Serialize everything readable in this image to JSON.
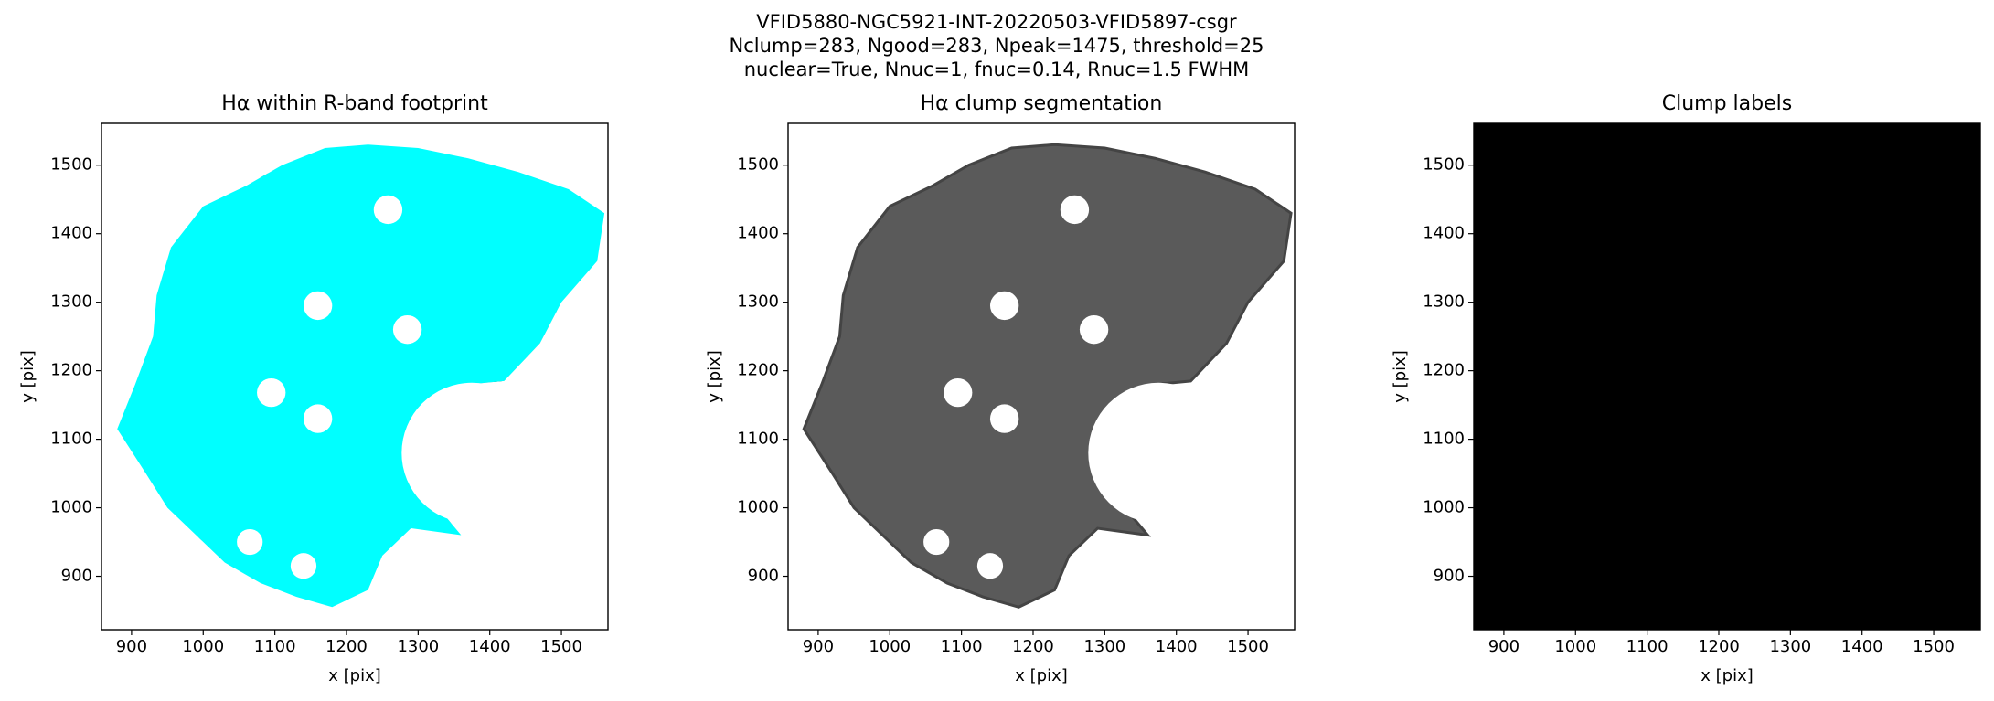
{
  "title": [
    "VFID5880-NGC5921-INT-20220503-VFID5897-csgr",
    "Nclump=283, Ngood=283, Npeak=1475, threshold=25",
    "nuclear=True, Nnuc=1, fnuc=0.14, Rnuc=1.5 FWHM"
  ],
  "chart_data": [
    {
      "type": "image",
      "title": "Hα within R-band footprint",
      "xlabel": "x [pix]",
      "ylabel": "y [pix]",
      "xlim": [
        858,
        1565
      ],
      "ylim": [
        822,
        1561
      ],
      "xticks": [
        900,
        1000,
        1100,
        1200,
        1300,
        1400,
        1500
      ],
      "yticks": [
        900,
        1000,
        1100,
        1200,
        1300,
        1400,
        1500
      ]
    },
    {
      "type": "image",
      "title": "Hα clump segmentation",
      "xlabel": "x [pix]",
      "ylabel": "y [pix]",
      "xlim": [
        858,
        1565
      ],
      "ylim": [
        822,
        1561
      ],
      "xticks": [
        900,
        1000,
        1100,
        1200,
        1300,
        1400,
        1500
      ],
      "yticks": [
        900,
        1000,
        1100,
        1200,
        1300,
        1400,
        1500
      ]
    },
    {
      "type": "image",
      "title": "Clump labels",
      "xlabel": "x [pix]",
      "ylabel": "y [pix]",
      "xlim": [
        858,
        1565
      ],
      "ylim": [
        822,
        1561
      ],
      "xticks": [
        900,
        1000,
        1100,
        1200,
        1300,
        1400,
        1500
      ],
      "yticks": [
        900,
        1000,
        1100,
        1200,
        1300,
        1400,
        1500
      ]
    }
  ]
}
